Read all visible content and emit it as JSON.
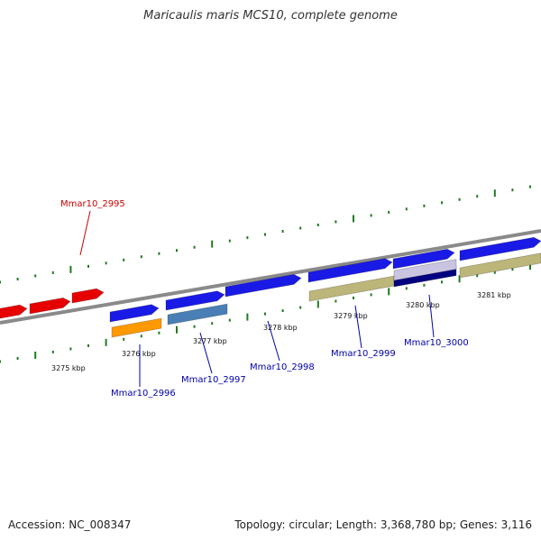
{
  "title": "Maricaulis maris MCS10, complete genome",
  "footer": {
    "accession": "Accession: NC_008347",
    "summary": "Topology: circular; Length: 3,368,780 bp; Genes: 3,116"
  },
  "colors": {
    "backbone": "#8a8a8a",
    "tick": "#1f7a1f",
    "red_gene": "#e60000",
    "blue_gene": "#1a1ae6",
    "orange_gene": "#ff9900",
    "steel_gene": "#4a7fb5",
    "khaki_gene": "#bdb67a",
    "navy_gene": "#000080",
    "lavender_gene": "#c9c4e0",
    "label_red": "#cc0000",
    "label_blue": "#0000aa"
  },
  "axis_labels": [
    "3275 kbp",
    "3276 kbp",
    "3277 kbp",
    "3278 kbp",
    "3279 kbp",
    "3280 kbp",
    "3281 kbp"
  ],
  "gene_labels": [
    "Mmar10_2995",
    "Mmar10_2996",
    "Mmar10_2997",
    "Mmar10_2998",
    "Mmar10_2999",
    "Mmar10_3000"
  ]
}
